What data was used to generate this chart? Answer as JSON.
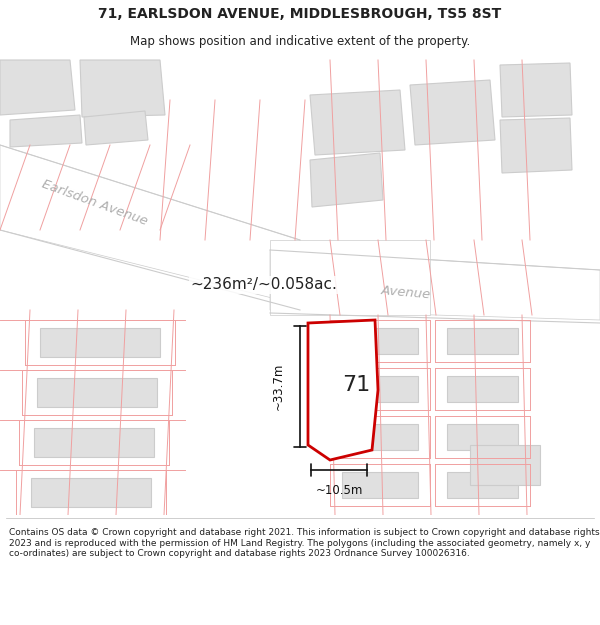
{
  "title_line1": "71, EARLSDON AVENUE, MIDDLESBROUGH, TS5 8ST",
  "title_line2": "Map shows position and indicative extent of the property.",
  "footer_text": "Contains OS data © Crown copyright and database right 2021. This information is subject to Crown copyright and database rights 2023 and is reproduced with the permission of HM Land Registry. The polygons (including the associated geometry, namely x, y co-ordinates) are subject to Crown copyright and database rights 2023 Ordnance Survey 100026316.",
  "area_label": "~236m²/~0.058ac.",
  "number_label": "71",
  "dim_width": "~10.5m",
  "dim_height": "~33.7m",
  "map_bg": "#f7f7f7",
  "road_fill": "#ffffff",
  "road_edge": "#cccccc",
  "bld_fill": "#e0e0e0",
  "bld_edge": "#cccccc",
  "plot_line": "#f0a0a0",
  "highlight_edge": "#cc0000",
  "highlight_fill": "#ffffff",
  "label_color": "#c8c8c8",
  "text_color": "#222222",
  "dim_color": "#111111",
  "earlsdon_label": "Earlsdon Avenue",
  "avenue_label": "Avenue"
}
